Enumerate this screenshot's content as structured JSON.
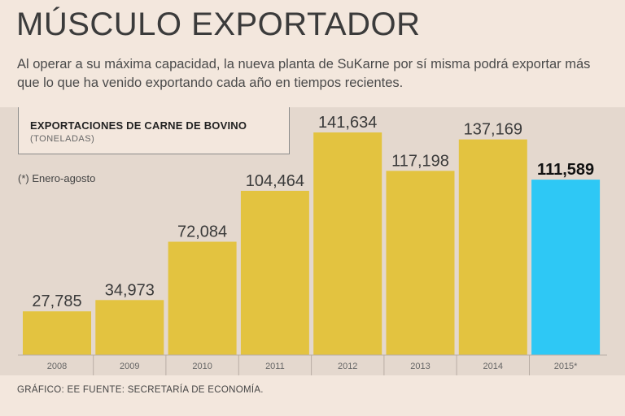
{
  "header": {
    "title": "MÚSCULO EXPORTADOR",
    "subtitle": "Al operar a su máxima capacidad, la nueva planta de SuKarne por sí misma podrá exportar más que lo que ha venido exportando cada año en tiempos recientes."
  },
  "legend": {
    "title": "EXPORTACIONES DE CARNE DE BOVINO",
    "unit": "(TONELADAS)"
  },
  "note": "(*) Enero-agosto",
  "footer": "GRÁFICO: EE  FUENTE: SECRETARÍA DE ECONOMÍA.",
  "colors": {
    "bar": "#e3c340",
    "highlight": "#2ec8f5",
    "background": "#f3e7dd",
    "chart_background": "#e4d8ce"
  },
  "chart_data": {
    "type": "bar",
    "title": "EXPORTACIONES DE CARNE DE BOVINO",
    "ylabel": "(TONELADAS)",
    "categories": [
      "2008",
      "2009",
      "2010",
      "2011",
      "2012",
      "2013",
      "2014",
      "2015*"
    ],
    "values": [
      27785,
      34973,
      72084,
      104464,
      141634,
      117198,
      137169,
      111589
    ],
    "value_labels": [
      "27,785",
      "34,973",
      "72,084",
      "104,464",
      "141,634",
      "117,198",
      "137,169",
      "111,589"
    ],
    "highlight_index": 7,
    "ylim": [
      0,
      150000
    ]
  }
}
